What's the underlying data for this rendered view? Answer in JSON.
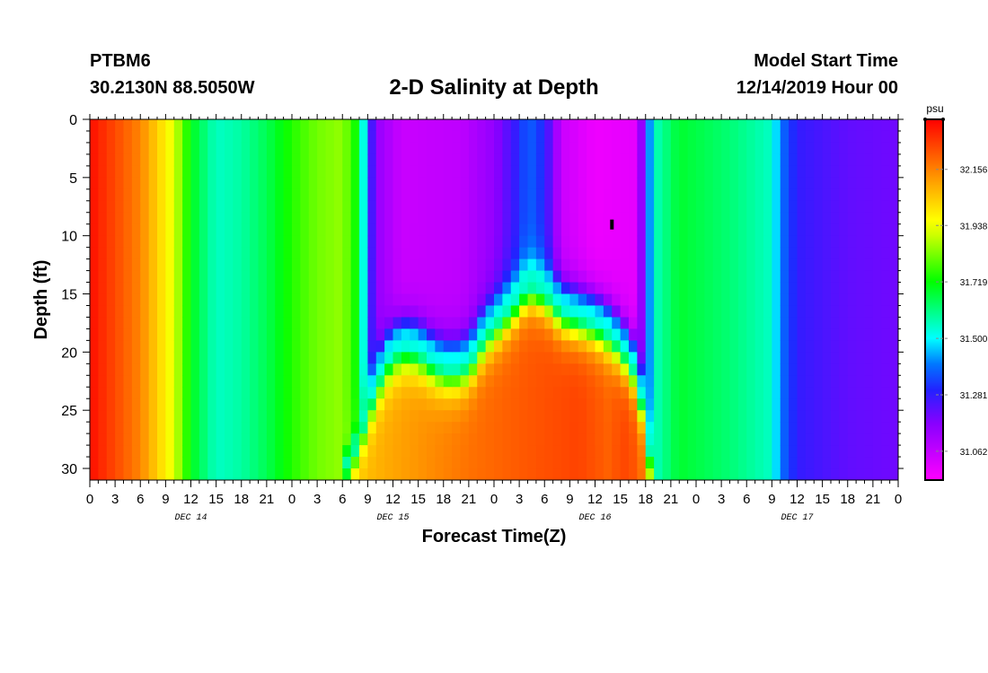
{
  "header": {
    "station": "PTBM6",
    "location": "30.2130N 88.5050W",
    "start_label": "Model Start Time",
    "start_value": "12/14/2019 Hour 00"
  },
  "colors": {
    "background": "#ffffff",
    "axis": "#000000",
    "marker": "#000000"
  },
  "chart_data": {
    "type": "heatmap",
    "title": "2-D Salinity at Depth",
    "xlabel": "Forecast Time(Z)",
    "ylabel": "Depth (ft)",
    "x_range_hours": [
      0,
      96
    ],
    "ylim": [
      0,
      31
    ],
    "y_inverted": true,
    "y_ticks": [
      0,
      5,
      10,
      15,
      20,
      25,
      30
    ],
    "x_tick_labels": [
      "0",
      "3",
      "6",
      "9",
      "12",
      "15",
      "18",
      "21",
      "0",
      "3",
      "6",
      "9",
      "12",
      "15",
      "18",
      "21",
      "0",
      "3",
      "6",
      "9",
      "12",
      "15",
      "18",
      "21",
      "0",
      "3",
      "6",
      "9",
      "12",
      "15",
      "18",
      "21",
      "0"
    ],
    "day_labels": [
      {
        "label": "DEC 14",
        "hour": 12
      },
      {
        "label": "DEC 15",
        "hour": 36
      },
      {
        "label": "DEC 16",
        "hour": 60
      },
      {
        "label": "DEC 17",
        "hour": 84
      }
    ],
    "colorbar": {
      "unit": "psu",
      "min": 30.95,
      "max": 32.35,
      "tick_values": [
        31.062,
        31.281,
        31.5,
        31.719,
        31.938,
        32.156
      ],
      "tick_labels": [
        "31.062",
        "31.281",
        "31.500",
        "31.719",
        "31.938",
        "32.156"
      ],
      "stops": [
        {
          "v": 30.95,
          "c": "#ff00ff"
        },
        {
          "v": 31.17,
          "c": "#8800ff"
        },
        {
          "v": 31.3,
          "c": "#2222ff"
        },
        {
          "v": 31.4,
          "c": "#0077ff"
        },
        {
          "v": 31.5,
          "c": "#00ffff"
        },
        {
          "v": 31.72,
          "c": "#00ff00"
        },
        {
          "v": 31.9,
          "c": "#ccff00"
        },
        {
          "v": 31.96,
          "c": "#ffff00"
        },
        {
          "v": 32.12,
          "c": "#ff9900"
        },
        {
          "v": 32.35,
          "c": "#ff0000"
        }
      ]
    },
    "surface_profile": [
      {
        "hour": 0,
        "value": 32.33
      },
      {
        "hour": 6,
        "value": 32.15
      },
      {
        "hour": 9,
        "value": 31.98
      },
      {
        "hour": 10,
        "value": 31.92
      },
      {
        "hour": 12,
        "value": 31.7
      },
      {
        "hour": 15,
        "value": 31.55
      },
      {
        "hour": 18,
        "value": 31.58
      },
      {
        "hour": 21,
        "value": 31.65
      },
      {
        "hour": 24,
        "value": 31.75
      },
      {
        "hour": 27,
        "value": 31.82
      },
      {
        "hour": 30,
        "value": 31.85
      },
      {
        "hour": 32,
        "value": 31.7
      },
      {
        "hour": 33,
        "value": 31.35
      },
      {
        "hour": 34,
        "value": 31.15
      },
      {
        "hour": 37,
        "value": 31.05
      },
      {
        "hour": 44,
        "value": 31.07
      },
      {
        "hour": 48,
        "value": 31.15
      },
      {
        "hour": 51,
        "value": 31.3
      },
      {
        "hour": 52,
        "value": 31.38
      },
      {
        "hour": 54,
        "value": 31.3
      },
      {
        "hour": 56,
        "value": 31.05
      },
      {
        "hour": 60,
        "value": 30.98
      },
      {
        "hour": 65,
        "value": 31.0
      },
      {
        "hour": 66,
        "value": 31.3
      },
      {
        "hour": 67,
        "value": 31.55
      },
      {
        "hour": 70,
        "value": 31.68
      },
      {
        "hour": 76,
        "value": 31.62
      },
      {
        "hour": 81,
        "value": 31.55
      },
      {
        "hour": 82,
        "value": 31.4
      },
      {
        "hour": 84,
        "value": 31.28
      },
      {
        "hour": 90,
        "value": 31.22
      },
      {
        "hour": 96,
        "value": 31.2
      }
    ],
    "bottom_profile": [
      {
        "hour": 0,
        "value": 32.33
      },
      {
        "hour": 6,
        "value": 32.15
      },
      {
        "hour": 9,
        "value": 31.98
      },
      {
        "hour": 10,
        "value": 31.92
      },
      {
        "hour": 12,
        "value": 31.7
      },
      {
        "hour": 15,
        "value": 31.55
      },
      {
        "hour": 18,
        "value": 31.58
      },
      {
        "hour": 21,
        "value": 31.65
      },
      {
        "hour": 24,
        "value": 31.75
      },
      {
        "hour": 27,
        "value": 31.82
      },
      {
        "hour": 28,
        "value": 31.9
      },
      {
        "hour": 29,
        "value": 32.0
      },
      {
        "hour": 31,
        "value": 32.05
      },
      {
        "hour": 36,
        "value": 32.1
      },
      {
        "hour": 45,
        "value": 32.18
      },
      {
        "hour": 52,
        "value": 32.22
      },
      {
        "hour": 58,
        "value": 32.25
      },
      {
        "hour": 62,
        "value": 32.2
      },
      {
        "hour": 63,
        "value": 32.25
      },
      {
        "hour": 65,
        "value": 32.22
      },
      {
        "hour": 66,
        "value": 32.15
      },
      {
        "hour": 67,
        "value": 31.8
      },
      {
        "hour": 68,
        "value": 31.55
      },
      {
        "hour": 70,
        "value": 31.68
      },
      {
        "hour": 76,
        "value": 31.62
      },
      {
        "hour": 81,
        "value": 31.55
      },
      {
        "hour": 82,
        "value": 31.4
      },
      {
        "hour": 84,
        "value": 31.28
      },
      {
        "hour": 90,
        "value": 31.22
      },
      {
        "hour": 96,
        "value": 31.2
      }
    ],
    "interface": [
      {
        "hour": 30,
        "depth": 31
      },
      {
        "hour": 32,
        "depth": 28
      },
      {
        "hour": 33,
        "depth": 25
      },
      {
        "hour": 35,
        "depth": 21
      },
      {
        "hour": 37,
        "depth": 19.5
      },
      {
        "hour": 39,
        "depth": 19.8
      },
      {
        "hour": 41,
        "depth": 21
      },
      {
        "hour": 43,
        "depth": 21.5
      },
      {
        "hour": 45,
        "depth": 21
      },
      {
        "hour": 47,
        "depth": 18.5
      },
      {
        "hour": 49,
        "depth": 17
      },
      {
        "hour": 51,
        "depth": 15.5
      },
      {
        "hour": 52,
        "depth": 14.5
      },
      {
        "hour": 54,
        "depth": 15
      },
      {
        "hour": 56,
        "depth": 16.5
      },
      {
        "hour": 58,
        "depth": 17
      },
      {
        "hour": 60,
        "depth": 17.5
      },
      {
        "hour": 62,
        "depth": 18.5
      },
      {
        "hour": 64,
        "depth": 20.5
      },
      {
        "hour": 65,
        "depth": 22
      },
      {
        "hour": 66,
        "depth": 26
      },
      {
        "hour": 67,
        "depth": 31
      }
    ],
    "marker": {
      "hour": 62,
      "depth": 9
    }
  }
}
